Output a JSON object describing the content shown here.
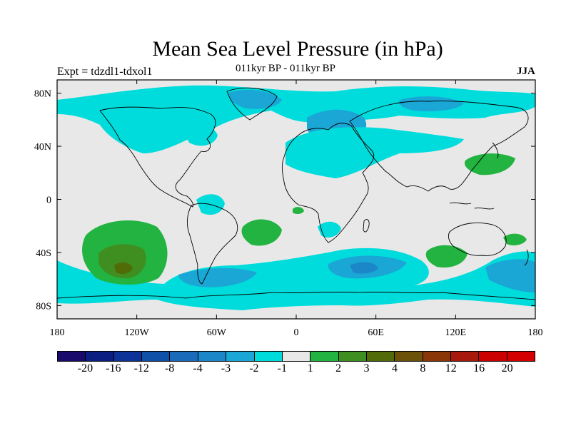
{
  "title": "Mean Sea Level Pressure (in hPa)",
  "left_label": "Expt = tdzdl1-tdxol1",
  "center_label": "011kyr BP - 011kyr BP",
  "right_label": "JJA",
  "chart_data": {
    "type": "map",
    "lon_ticks": [
      "180",
      "120W",
      "60W",
      "0",
      "60E",
      "120E",
      "180"
    ],
    "lat_ticks": [
      "80N",
      "40N",
      "0",
      "40S",
      "80S"
    ],
    "colorbar_levels": [
      "-20",
      "-16",
      "-12",
      "-8",
      "-4",
      "-3",
      "-2",
      "-1",
      "1",
      "2",
      "3",
      "4",
      "8",
      "12",
      "16",
      "20"
    ],
    "colorbar_colors": [
      "#1a0a6b",
      "#0b1e82",
      "#0d3399",
      "#0f50a8",
      "#1a6cba",
      "#1b86c8",
      "#1aa7d6",
      "#00dcdc",
      "#e8e8e8",
      "#22b340",
      "#3f8f20",
      "#506b08",
      "#6b5208",
      "#8b3606",
      "#a8190d",
      "#cc0000",
      "#d40000"
    ]
  },
  "colors": {
    "background": "#e8e8e8",
    "neg1": "#00dcdc",
    "neg2": "#1aa7d6",
    "neg3": "#1b86c8",
    "pos1": "#22b340",
    "pos2": "#3f8f20",
    "pos3": "#506b08"
  }
}
